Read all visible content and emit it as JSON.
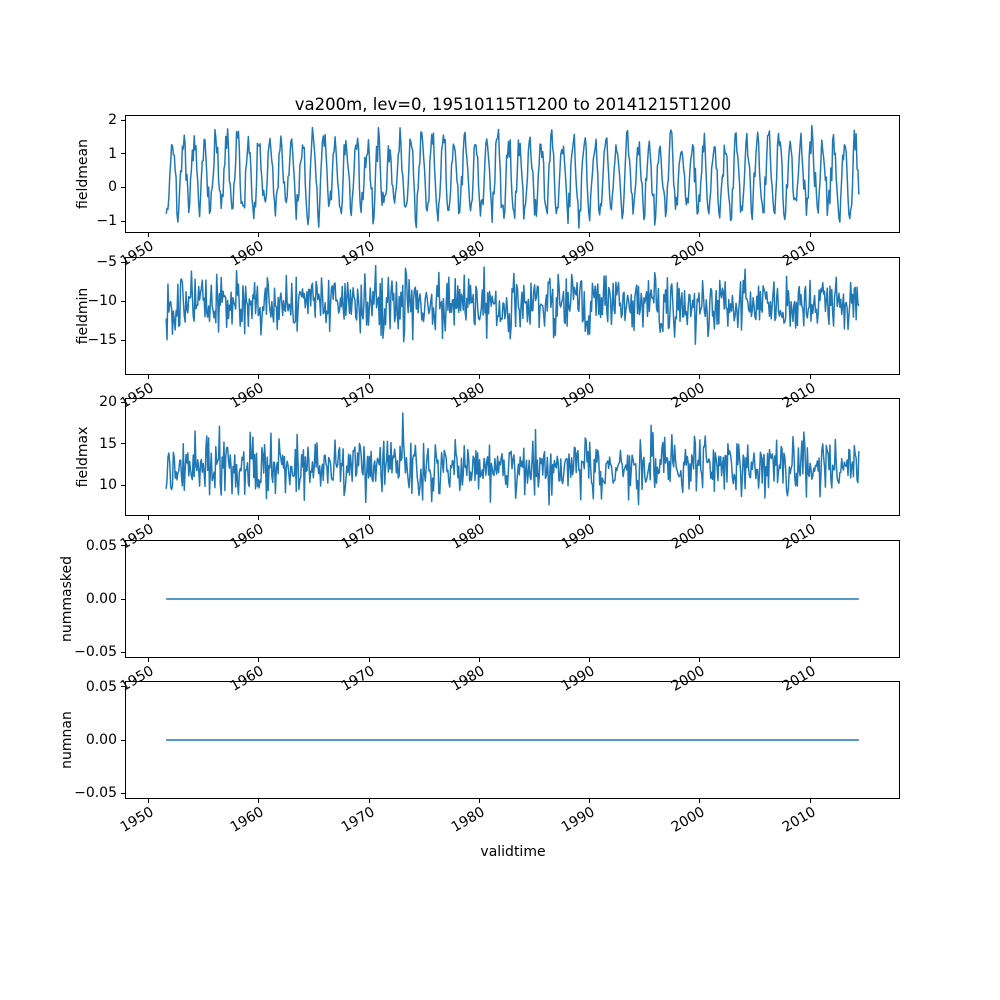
{
  "figure": {
    "xlabel": "validtime",
    "background": "#ffffff",
    "line_color": "#1f77b4"
  },
  "chart_data": [
    {
      "type": "line",
      "title": "va200m, lev=0, 19510115T1200 to 20141215T1200",
      "ylabel": "fieldmean",
      "x_start": 1951.0417,
      "x_end": 2014.9583,
      "points": 768,
      "xlim": [
        1947.85,
        2018.15
      ],
      "ylim": [
        -1.35,
        2.15
      ],
      "xticks": [
        1950,
        1960,
        1970,
        1980,
        1990,
        2000,
        2010
      ],
      "xtick_labels": [
        "1950",
        "1960",
        "1970",
        "1980",
        "1990",
        "2000",
        "2010"
      ],
      "yticks": [
        2,
        1,
        0,
        -1
      ],
      "ytick_labels": [
        "2",
        "1",
        "0",
        "−1"
      ],
      "series": {
        "kind": "seasonal_noise",
        "mean": 0.35,
        "amplitude": 1.05,
        "phase": 0.37,
        "noise": 0.25,
        "spike_prob": 0,
        "spike_scale": 0,
        "seed": 7
      }
    },
    {
      "type": "line",
      "title": "",
      "ylabel": "fieldmin",
      "x_start": 1951.0417,
      "x_end": 2014.9583,
      "points": 768,
      "xlim": [
        1947.85,
        2018.15
      ],
      "ylim": [
        -19.5,
        -4.3
      ],
      "xticks": [
        1950,
        1960,
        1970,
        1980,
        1990,
        2000,
        2010
      ],
      "xtick_labels": [
        "1950",
        "1960",
        "1970",
        "1980",
        "1990",
        "2000",
        "2010"
      ],
      "yticks": [
        -5,
        -10,
        -15
      ],
      "ytick_labels": [
        "−5",
        "−10",
        "−15"
      ],
      "series": {
        "kind": "seasonal_noise",
        "mean": -10.2,
        "amplitude": 0.6,
        "phase": 0.1,
        "noise": 1.8,
        "spike_prob": 0.012,
        "spike_scale": -3.2,
        "seed": 13
      }
    },
    {
      "type": "line",
      "title": "",
      "ylabel": "fieldmax",
      "x_start": 1951.0417,
      "x_end": 2014.9583,
      "points": 768,
      "xlim": [
        1947.85,
        2018.15
      ],
      "ylim": [
        6.3,
        20.5
      ],
      "xticks": [
        1950,
        1960,
        1970,
        1980,
        1990,
        2000,
        2010
      ],
      "xtick_labels": [
        "1950",
        "1960",
        "1970",
        "1980",
        "1990",
        "2000",
        "2010"
      ],
      "yticks": [
        20,
        15,
        10
      ],
      "ytick_labels": [
        "20",
        "15",
        "10"
      ],
      "series": {
        "kind": "seasonal_noise",
        "mean": 12.1,
        "amplitude": 0.6,
        "phase": 0.6,
        "noise": 1.7,
        "spike_prob": 0.012,
        "spike_scale": 3.2,
        "seed": 29
      }
    },
    {
      "type": "line",
      "title": "",
      "ylabel": "nummasked",
      "x_start": 1951.0417,
      "x_end": 2014.9583,
      "points": 768,
      "xlim": [
        1947.85,
        2018.15
      ],
      "ylim": [
        -0.0555,
        0.0555
      ],
      "xticks": [
        1950,
        1960,
        1970,
        1980,
        1990,
        2000,
        2010
      ],
      "xtick_labels": [
        "1950",
        "1960",
        "1970",
        "1980",
        "1990",
        "2000",
        "2010"
      ],
      "yticks": [
        0.05,
        0.0,
        -0.05
      ],
      "ytick_labels": [
        "0.05",
        "0.00",
        "−0.05"
      ],
      "series": {
        "kind": "constant",
        "value": 0,
        "seed": 1
      }
    },
    {
      "type": "line",
      "title": "",
      "ylabel": "numnan",
      "x_start": 1951.0417,
      "x_end": 2014.9583,
      "points": 768,
      "xlim": [
        1947.85,
        2018.15
      ],
      "ylim": [
        -0.0555,
        0.0555
      ],
      "xticks": [
        1950,
        1960,
        1970,
        1980,
        1990,
        2000,
        2010
      ],
      "xtick_labels": [
        "1950",
        "1960",
        "1970",
        "1980",
        "1990",
        "2000",
        "2010"
      ],
      "yticks": [
        0.05,
        0.0,
        -0.05
      ],
      "ytick_labels": [
        "0.05",
        "0.00",
        "−0.05"
      ],
      "series": {
        "kind": "constant",
        "value": 0,
        "seed": 2
      }
    }
  ]
}
